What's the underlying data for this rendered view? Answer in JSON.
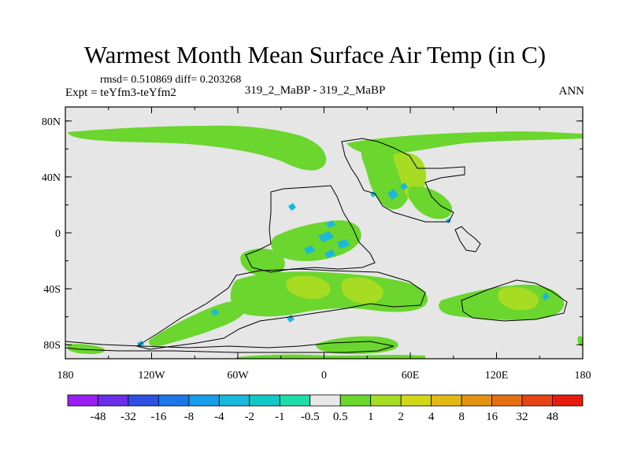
{
  "header": {
    "title": "Warmest Month Mean Surface Air Temp (in C)",
    "stats": "rmsd= 0.510869  diff= 0.203268",
    "experiment": "Expt = teYfm3-teYfm2",
    "comparison": "319_2_MaBP - 319_2_MaBP",
    "season": "ANN"
  },
  "axes": {
    "x_ticks": [
      "180",
      "120W",
      "60W",
      "0",
      "60E",
      "120E",
      "180"
    ],
    "y_ticks": [
      "80N",
      "40N",
      "0",
      "40S",
      "80S"
    ]
  },
  "legend": {
    "labels": [
      "-48",
      "-32",
      "-16",
      "-8",
      "-4",
      "-2",
      "-1",
      "-0.5",
      "0.5",
      "1",
      "2",
      "4",
      "8",
      "16",
      "32",
      "48"
    ],
    "colors": [
      "#9a1ef2",
      "#6a2ee6",
      "#2e4fe0",
      "#1a78e8",
      "#169ee8",
      "#1ab8dc",
      "#12c8c8",
      "#1edca8",
      "#e8e8e8",
      "#6ad62e",
      "#a6dc22",
      "#d2d618",
      "#e4b814",
      "#e49212",
      "#e66e12",
      "#e64414",
      "#e41c0e"
    ]
  },
  "map": {
    "background_color": "#e6e6e6",
    "primary_anomaly_color": "#6ad62e",
    "secondary_anomaly_color": "#a6dc22",
    "negative_anomaly_color": "#1ab8dc"
  }
}
